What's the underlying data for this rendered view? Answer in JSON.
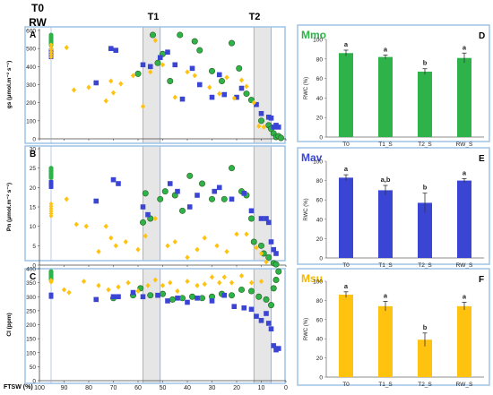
{
  "header": {
    "t0_label": "T0",
    "rw_label": "RW",
    "t1_label": "T1",
    "t2_label": "T2"
  },
  "colors": {
    "mmo": "#2eb34a",
    "mav": "#3b45d4",
    "msu": "#ffc20e",
    "mmo_title": "#2eb34a",
    "mav_title": "#3b45d4",
    "msu_title": "#f5b800",
    "panel_border": "#9dc3e6",
    "shade": "#e6e6e6",
    "ref_line": "#8eaadb"
  },
  "left_panels": {
    "ftsw_label": "FTSW (%)",
    "x_ticks": [
      100,
      90,
      80,
      70,
      60,
      50,
      40,
      30,
      20,
      10,
      0
    ],
    "t1_band": [
      58,
      51
    ],
    "t2_band": [
      13,
      6
    ]
  },
  "chart_data": [
    {
      "type": "scatter",
      "panel_letter": "A",
      "ylabel": "gs (μmol.m⁻² s⁻¹)",
      "ylim": [
        0,
        600
      ],
      "yticks": [
        0,
        100,
        200,
        300,
        400,
        500,
        600
      ],
      "xlim": [
        100,
        0
      ],
      "series": [
        {
          "name": "Mmo",
          "marker": "circle",
          "x": [
            54,
            60,
            52,
            50,
            47,
            43,
            37,
            35,
            30,
            26,
            22,
            19,
            16,
            14,
            10,
            7,
            6,
            5,
            4,
            3,
            2
          ],
          "y": [
            575,
            360,
            420,
            470,
            320,
            575,
            540,
            490,
            375,
            320,
            530,
            390,
            250,
            215,
            100,
            75,
            55,
            30,
            10,
            15,
            5
          ]
        },
        {
          "name": "Mav",
          "marker": "square",
          "x": [
            77,
            71,
            69,
            58,
            55,
            51,
            48,
            45,
            42,
            38,
            35,
            30,
            27,
            25,
            20,
            18,
            12,
            10,
            7,
            6,
            5,
            4,
            3
          ],
          "y": [
            310,
            500,
            490,
            410,
            400,
            450,
            480,
            410,
            220,
            390,
            300,
            230,
            355,
            245,
            230,
            280,
            190,
            140,
            120,
            115,
            65,
            75,
            65
          ]
        },
        {
          "name": "Msu",
          "marker": "diamond",
          "x": [
            89,
            86,
            80,
            73,
            71,
            70,
            67,
            62,
            58,
            55,
            53,
            50,
            45,
            40,
            37,
            31,
            27,
            24,
            21,
            18,
            16,
            13,
            11,
            9
          ],
          "y": [
            505,
            270,
            285,
            210,
            320,
            255,
            305,
            350,
            180,
            370,
            545,
            410,
            230,
            370,
            350,
            285,
            250,
            340,
            225,
            325,
            290,
            200,
            70,
            65
          ]
        }
      ]
    },
    {
      "type": "scatter",
      "panel_letter": "B",
      "ylabel": "Pn (μmol.m⁻² s⁻¹)",
      "ylim": [
        0,
        30
      ],
      "yticks": [
        0,
        5,
        10,
        15,
        20,
        25,
        30
      ],
      "xlim": [
        100,
        0
      ],
      "series": [
        {
          "name": "Mmo",
          "marker": "circle",
          "x": [
            58,
            57,
            55,
            51,
            49,
            45,
            42,
            39,
            34,
            30,
            25,
            22,
            18,
            16,
            14,
            13,
            10,
            9,
            7,
            5,
            4
          ],
          "y": [
            11,
            18.5,
            12,
            17,
            19,
            18,
            14,
            23,
            21,
            17,
            17,
            25,
            19,
            18,
            12,
            6,
            5,
            3,
            2,
            0.5,
            0.2
          ]
        },
        {
          "name": "Mav",
          "marker": "square",
          "x": [
            77,
            70,
            68,
            58,
            56,
            47,
            44,
            39,
            36,
            29,
            27,
            22,
            17,
            14,
            10,
            8,
            7,
            6,
            5,
            4
          ],
          "y": [
            16.5,
            22,
            21,
            15,
            13,
            21,
            19,
            15,
            18,
            19,
            20,
            17,
            18.5,
            14,
            12,
            12,
            11,
            6,
            4,
            3
          ]
        },
        {
          "name": "Msu",
          "marker": "diamond",
          "x": [
            89,
            85,
            81,
            76,
            73,
            71,
            69,
            65,
            60,
            57,
            53,
            48,
            45,
            40,
            36,
            33,
            28,
            24,
            20,
            16,
            12,
            10,
            8
          ],
          "y": [
            17,
            10.5,
            10,
            3.5,
            10,
            7,
            5,
            6,
            4,
            7.5,
            12,
            5,
            6,
            2,
            4,
            7,
            5,
            3.5,
            8,
            8,
            4.5,
            3,
            0.8
          ]
        }
      ]
    },
    {
      "type": "scatter",
      "panel_letter": "C",
      "ylabel": "CI (ppm)",
      "ylim": [
        0,
        400
      ],
      "yticks": [
        0,
        50,
        100,
        150,
        200,
        250,
        300,
        350,
        400
      ],
      "xlim": [
        100,
        0
      ],
      "series": [
        {
          "name": "Mmo",
          "marker": "circle",
          "x": [
            70,
            62,
            59,
            55,
            50,
            46,
            42,
            38,
            34,
            30,
            26,
            22,
            18,
            14,
            11,
            8,
            6,
            5,
            4,
            3
          ],
          "y": [
            295,
            305,
            330,
            305,
            310,
            290,
            295,
            300,
            295,
            300,
            310,
            305,
            325,
            320,
            300,
            290,
            270,
            330,
            360,
            390
          ]
        },
        {
          "name": "Mav",
          "marker": "square",
          "x": [
            77,
            70,
            68,
            62,
            58,
            52,
            48,
            44,
            40,
            36,
            30,
            25,
            21,
            17,
            14,
            12,
            10,
            8,
            7,
            6,
            5,
            4,
            3
          ],
          "y": [
            290,
            300,
            300,
            315,
            300,
            305,
            285,
            295,
            280,
            295,
            285,
            305,
            265,
            260,
            255,
            230,
            215,
            240,
            205,
            185,
            125,
            110,
            115
          ]
        },
        {
          "name": "Msu",
          "marker": "diamond",
          "x": [
            90,
            88,
            82,
            76,
            72,
            68,
            64,
            60,
            56,
            53,
            50,
            47,
            44,
            40,
            36,
            33,
            30,
            27,
            25,
            22,
            18,
            14,
            10
          ],
          "y": [
            325,
            315,
            355,
            340,
            325,
            335,
            350,
            320,
            340,
            360,
            340,
            350,
            320,
            355,
            340,
            345,
            370,
            350,
            370,
            350,
            375,
            350,
            355
          ]
        }
      ]
    },
    {
      "type": "bar",
      "panel_letter": "D",
      "title": "Mmo",
      "ylabel": "RWC (%)",
      "ylim": [
        0,
        100
      ],
      "yticks": [
        0,
        20,
        40,
        60,
        80,
        100
      ],
      "categories": [
        "T0",
        "T1_S",
        "T2_S",
        "RW_S"
      ],
      "values": [
        86,
        82,
        67,
        81
      ],
      "errors": [
        3,
        2,
        3,
        5
      ],
      "letters": [
        "a",
        "a",
        "b",
        "a"
      ]
    },
    {
      "type": "bar",
      "panel_letter": "E",
      "title": "Mav",
      "ylabel": "RWC (%)",
      "ylim": [
        0,
        100
      ],
      "yticks": [
        0,
        20,
        40,
        60,
        80,
        100
      ],
      "categories": [
        "T0",
        "T1_S",
        "T2_S",
        "RW_S"
      ],
      "values": [
        83,
        70,
        57,
        80
      ],
      "errors": [
        3,
        5,
        10,
        2
      ],
      "letters": [
        "a",
        "a,b",
        "b",
        "a"
      ]
    },
    {
      "type": "bar",
      "panel_letter": "F",
      "title": "Msu",
      "ylabel": "RWC (%)",
      "ylim": [
        0,
        100
      ],
      "yticks": [
        0,
        20,
        40,
        60,
        80,
        100
      ],
      "categories": [
        "T0",
        "T1_S",
        "T2_S",
        "RW_S"
      ],
      "values": [
        86,
        74,
        39,
        74
      ],
      "errors": [
        3,
        5,
        7,
        4
      ],
      "letters": [
        "a",
        "a",
        "b",
        "a"
      ]
    }
  ]
}
